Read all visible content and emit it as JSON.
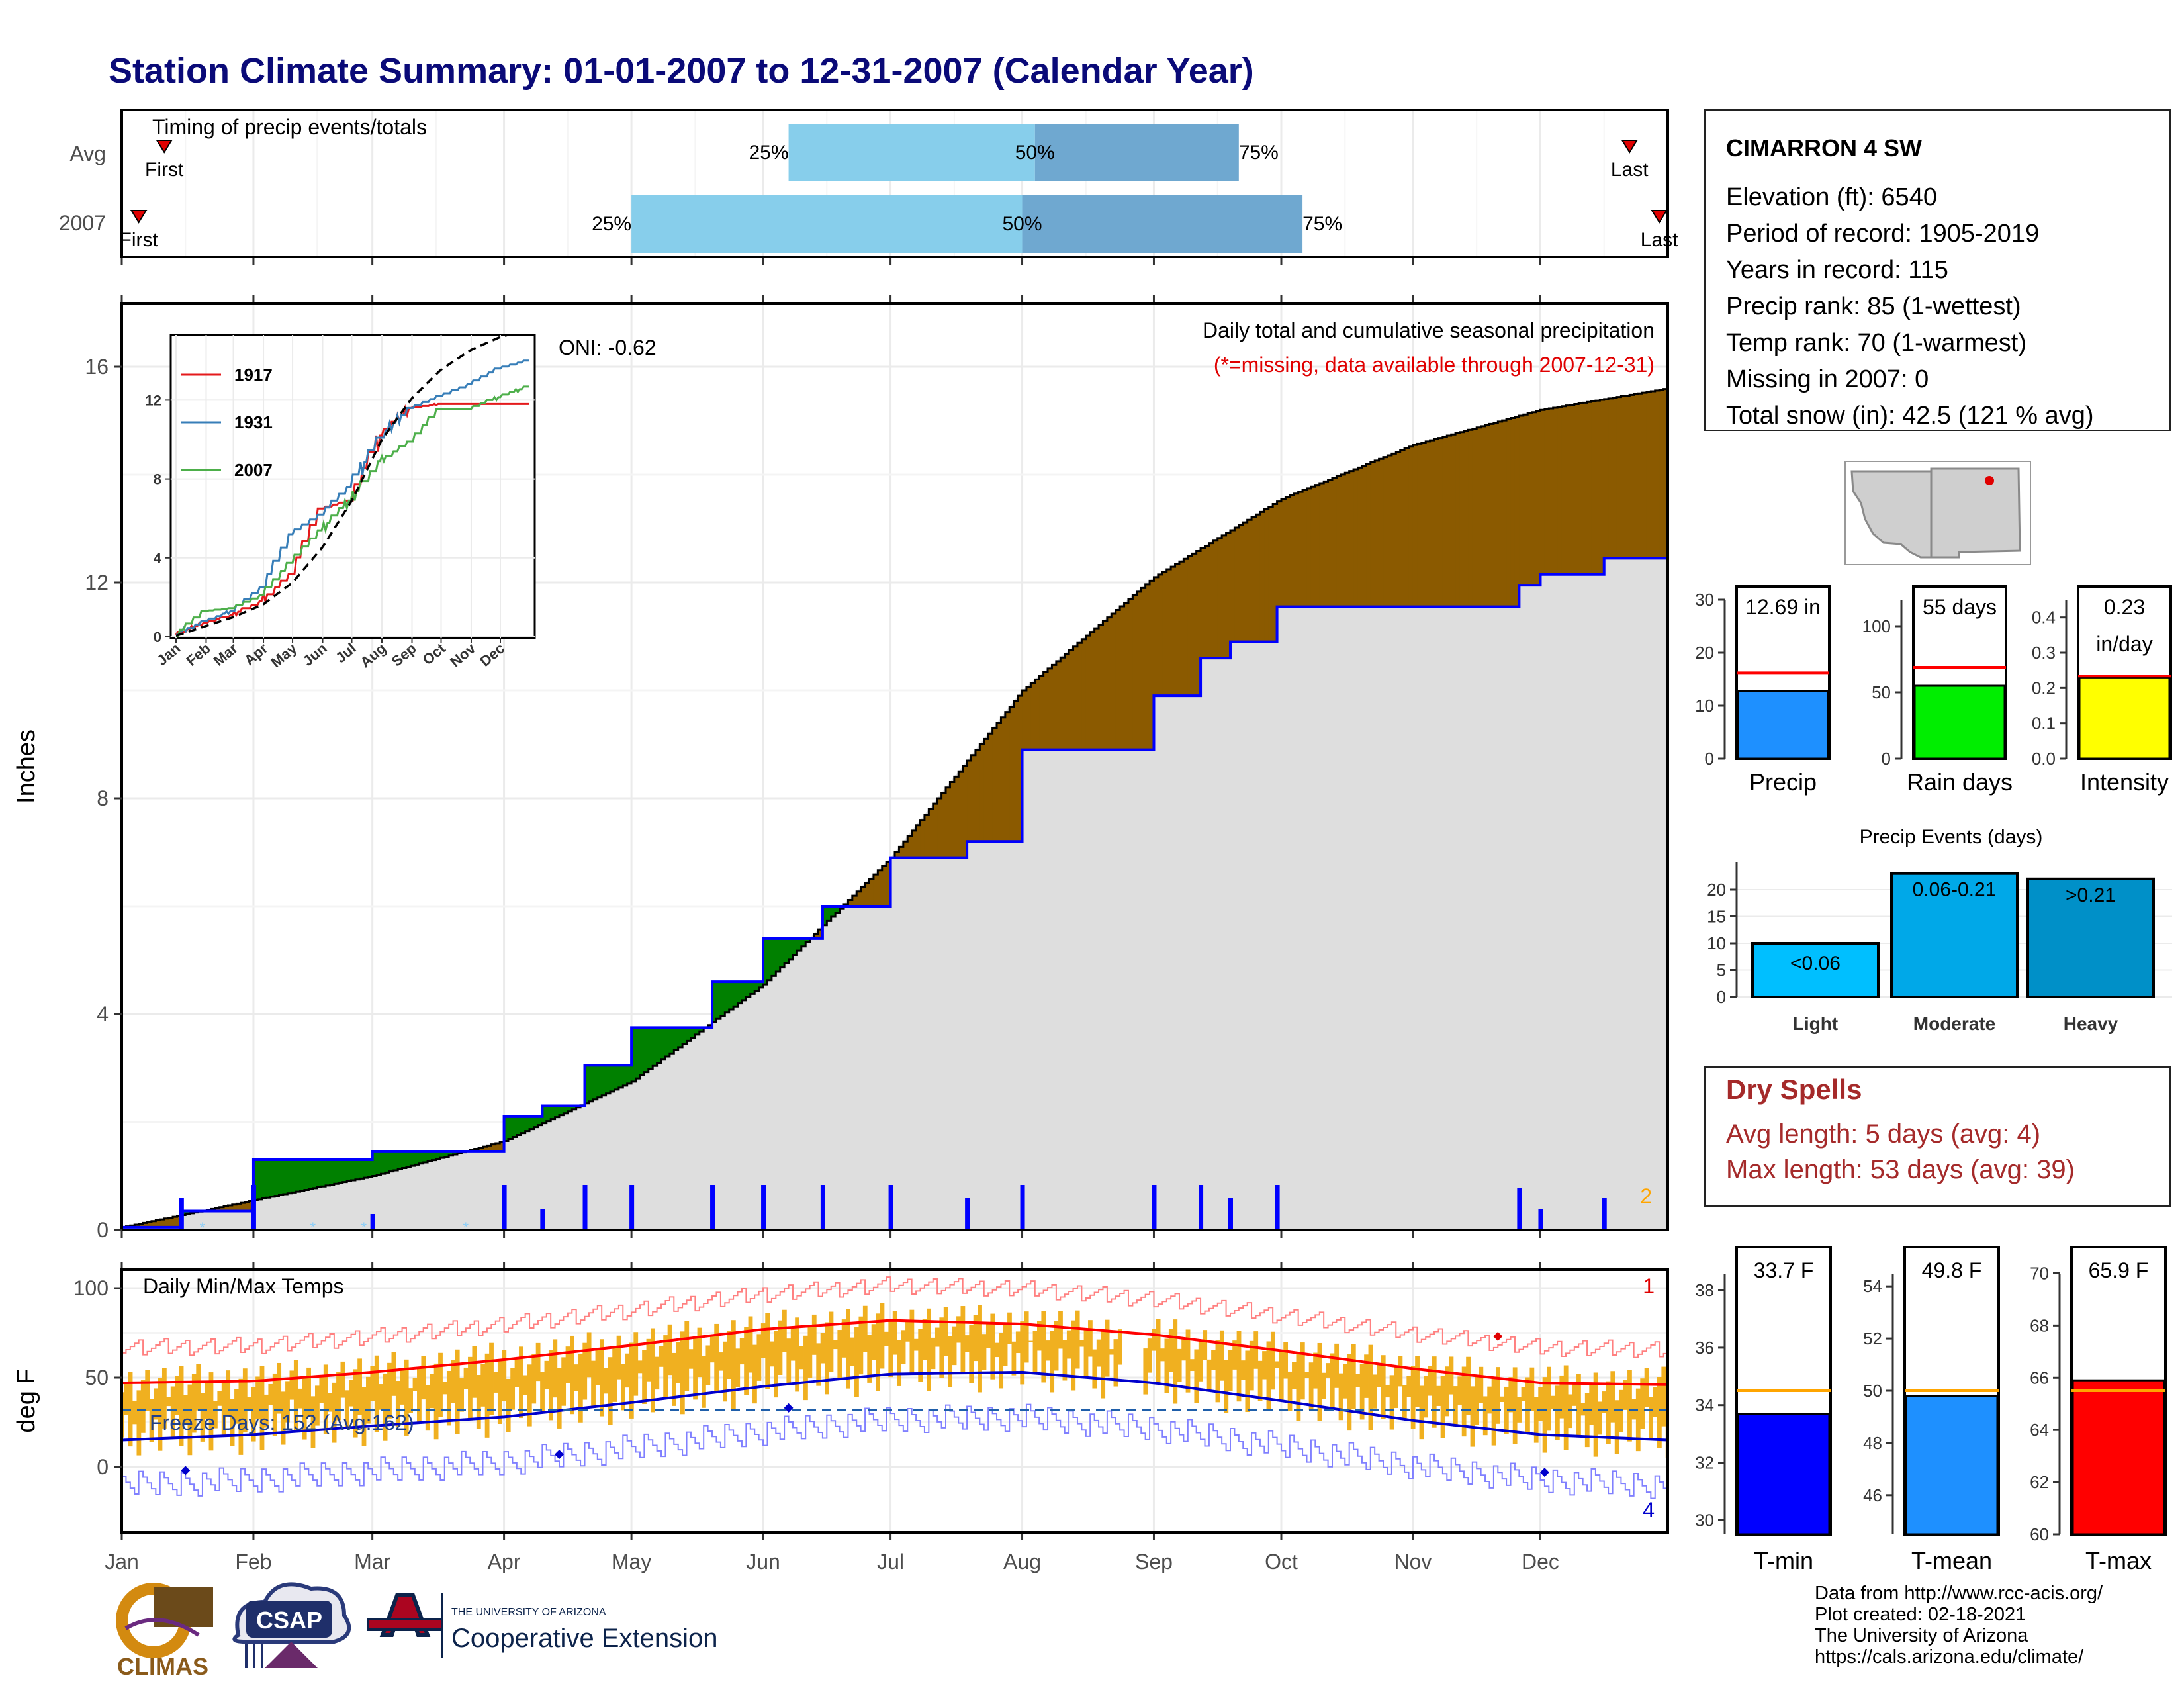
{
  "title": "Station Climate Summary: 01-01-2007 to 12-31-2007 (Calendar Year)",
  "months": [
    "Jan",
    "Feb",
    "Mar",
    "Apr",
    "May",
    "Jun",
    "Jul",
    "Aug",
    "Sep",
    "Oct",
    "Nov",
    "Dec"
  ],
  "timing": {
    "title": "Timing of precip events/totals",
    "rows": [
      {
        "label": "Avg",
        "first": "First",
        "last": "Last",
        "p25": "25%",
        "p50": "50%",
        "p75": "75%",
        "first_day": 11,
        "q25": 158,
        "q50": 216,
        "q75": 264,
        "last_day": 356
      },
      {
        "label": "2007",
        "first": "First",
        "last": "Last",
        "p25": "25%",
        "p50": "50%",
        "p75": "75%",
        "first_day": 5,
        "q25": 121,
        "q50": 213,
        "q75": 279,
        "last_day": 363
      }
    ],
    "colors": {
      "light": "#87ceeb",
      "dark": "#6fa8d0",
      "marker": "#e00000"
    }
  },
  "precip": {
    "ylabel": "Inches",
    "yticks": [
      "0",
      "4",
      "8",
      "12",
      "16"
    ],
    "oni": "ONI: -0.62",
    "caption1": "Daily total and cumulative seasonal precipitation",
    "caption2": "(*=missing, data available through 2007-12-31)",
    "corner": "2",
    "colors": {
      "above": "#008000",
      "below": "#8b5a00",
      "area": "#dedede",
      "actual": "#0000ff"
    }
  },
  "inset": {
    "yticks": [
      "0",
      "4",
      "8",
      "12"
    ],
    "legend": [
      {
        "label": "1917",
        "color": "#e41a1c"
      },
      {
        "label": "1931",
        "color": "#377eb8"
      },
      {
        "label": "2007",
        "color": "#4daf4a"
      }
    ]
  },
  "temps": {
    "ylabel": "deg F",
    "yticks": [
      "0",
      "50",
      "100"
    ],
    "label": "Daily Min/Max Temps",
    "freeze": "Freeze Days: 152 (Avg:162)",
    "top_count": "1",
    "bottom_count": "4",
    "colors": {
      "bars": "#f0b020",
      "avg_max": "#ff0000",
      "avg_min": "#0000cc"
    }
  },
  "station": {
    "name": "CIMARRON 4 SW",
    "lines": [
      "Elevation (ft): 6540",
      "Period of record: 1905-2019",
      "Years in record: 115",
      "Precip rank: 85 (1-wettest)",
      "Temp rank: 70 (1-warmest)",
      "Missing in 2007: 0",
      "Total snow (in): 42.5 (121 % avg)"
    ]
  },
  "small_bars": [
    {
      "label": "Precip",
      "value_text": "12.69 in",
      "value": 12.69,
      "avg": 16.2,
      "ymax": 30,
      "yticks": [
        "0",
        "10",
        "20",
        "30"
      ],
      "color": "#1e90ff"
    },
    {
      "label": "Rain days",
      "value_text": "55 days",
      "value": 55,
      "avg": 69,
      "ymax": 120,
      "yticks": [
        "0",
        "50",
        "100"
      ],
      "color": "#00ee00"
    },
    {
      "label": "Intensity",
      "value_text": "0.23",
      "value_text2": "in/day",
      "value": 0.23,
      "avg": 0.234,
      "ymax": 0.45,
      "yticks": [
        "0.0",
        "0.1",
        "0.2",
        "0.3",
        "0.4"
      ],
      "color": "#ffff00"
    }
  ],
  "events": {
    "title": "Precip Events (days)",
    "yticks": [
      "0",
      "5",
      "10",
      "15",
      "20"
    ],
    "bars": [
      {
        "label": "Light",
        "value_text": "<0.06",
        "value": 10,
        "color": "#00bfff"
      },
      {
        "label": "Moderate",
        "value_text": "0.06-0.21",
        "value": 23,
        "color": "#00a8e8"
      },
      {
        "label": "Heavy",
        "value_text": ">0.21",
        "value": 22,
        "color": "#0090c8"
      }
    ]
  },
  "dry_spells": {
    "title": "Dry Spells",
    "avg": "Avg length: 5 days (avg: 4)",
    "max": "Max length: 53 days (avg: 39)"
  },
  "temp_bars": [
    {
      "label": "T-min",
      "value_text": "33.7 F",
      "value": 33.7,
      "avg": 34.5,
      "ymin": 29.5,
      "ymax": 39.5,
      "ticks": [
        30,
        32,
        34,
        36,
        38
      ],
      "color": "#0000ff"
    },
    {
      "label": "T-mean",
      "value_text": "49.8 F",
      "value": 49.8,
      "avg": 50,
      "ymin": 44.5,
      "ymax": 55.5,
      "ticks": [
        46,
        48,
        50,
        52,
        54
      ],
      "color": "#1e90ff"
    },
    {
      "label": "T-max",
      "value_text": "65.9 F",
      "value": 65.9,
      "avg": 65.5,
      "ymin": 60,
      "ymax": 71,
      "ticks": [
        60,
        62,
        64,
        66,
        68,
        70
      ],
      "color": "#ff0000"
    }
  ],
  "footer": {
    "lines": [
      "Data from http://www.rcc-acis.org/",
      "Plot created: 02-18-2021",
      "The University of Arizona",
      "https://cals.arizona.edu/climate/"
    ],
    "logo1": "CLIMAS",
    "logo2": "CSAP",
    "logo3a": "THE UNIVERSITY OF ARIZONA",
    "logo3b": "Cooperative Extension"
  },
  "chart_data": [
    {
      "type": "line",
      "title": "Daily total and cumulative seasonal precipitation",
      "ylabel": "Inches",
      "ylim": [
        0,
        17
      ],
      "series": [
        {
          "name": "2007",
          "x": [
            1,
            15,
            32,
            60,
            91,
            100,
            110,
            121,
            140,
            152,
            166,
            182,
            200,
            213,
            238,
            244,
            255,
            262,
            273,
            305,
            330,
            335,
            350,
            365
          ],
          "values": [
            0.05,
            0.35,
            1.3,
            1.45,
            2.1,
            2.3,
            3.05,
            3.75,
            4.6,
            5.4,
            6.0,
            6.9,
            7.2,
            8.9,
            8.9,
            9.9,
            10.6,
            10.9,
            11.55,
            11.55,
            11.95,
            12.15,
            12.45,
            12.69
          ]
        },
        {
          "x": [
            1,
            32,
            60,
            91,
            121,
            152,
            182,
            213,
            244,
            274,
            305,
            335,
            365
          ],
          "values": [
            0.05,
            0.55,
            1.0,
            1.65,
            2.75,
            4.55,
            6.9,
            10.0,
            12.1,
            13.55,
            14.55,
            15.2,
            15.6
          ]
        }
      ]
    },
    {
      "type": "line",
      "ylim": [
        0,
        17
      ],
      "series": [
        {
          "name": "1917",
          "x": [
            1,
            32,
            60,
            91,
            121,
            152,
            182,
            213,
            244,
            274,
            305,
            335,
            365
          ],
          "values": [
            0.1,
            0.7,
            1.1,
            1.8,
            3.2,
            6.5,
            6.9,
            10.2,
            11.6,
            11.8,
            11.8,
            11.8,
            11.8
          ]
        },
        {
          "name": "1931",
          "x": [
            1,
            32,
            60,
            91,
            121,
            152,
            182,
            213,
            244,
            274,
            305,
            335,
            365
          ],
          "values": [
            0.1,
            0.8,
            1.3,
            2.5,
            5.2,
            6.2,
            7.6,
            10.1,
            11.6,
            12.2,
            12.8,
            13.6,
            14.0
          ]
        },
        {
          "name": "2007",
          "x": [
            1,
            32,
            60,
            91,
            121,
            152,
            182,
            213,
            244,
            274,
            305,
            335,
            365
          ],
          "values": [
            0.05,
            1.3,
            1.45,
            2.1,
            3.75,
            5.4,
            6.9,
            8.9,
            9.9,
            11.55,
            11.55,
            12.15,
            12.69
          ]
        },
        {
          "x": [
            1,
            32,
            60,
            91,
            121,
            152,
            182,
            213,
            244,
            274,
            305,
            335,
            365
          ],
          "values": [
            0.05,
            0.55,
            1.0,
            1.65,
            2.75,
            4.55,
            6.9,
            10.0,
            12.1,
            13.55,
            14.55,
            15.2,
            15.6
          ]
        }
      ]
    },
    {
      "type": "line",
      "title": "Daily Min/Max Temps",
      "ylabel": "deg F",
      "ylim": [
        -35,
        105
      ],
      "series": [
        {
          "x": [
            1,
            32,
            60,
            91,
            121,
            152,
            182,
            213,
            244,
            274,
            305,
            335,
            365
          ],
          "values": [
            47,
            48,
            53,
            60,
            68,
            77,
            82,
            80,
            74,
            65,
            55,
            47,
            46
          ]
        },
        {
          "x": [
            1,
            32,
            60,
            91,
            121,
            152,
            182,
            213,
            244,
            274,
            305,
            335,
            365
          ],
          "values": [
            15,
            18,
            23,
            28,
            36,
            45,
            52,
            53,
            47,
            37,
            26,
            18,
            15
          ]
        }
      ]
    }
  ]
}
